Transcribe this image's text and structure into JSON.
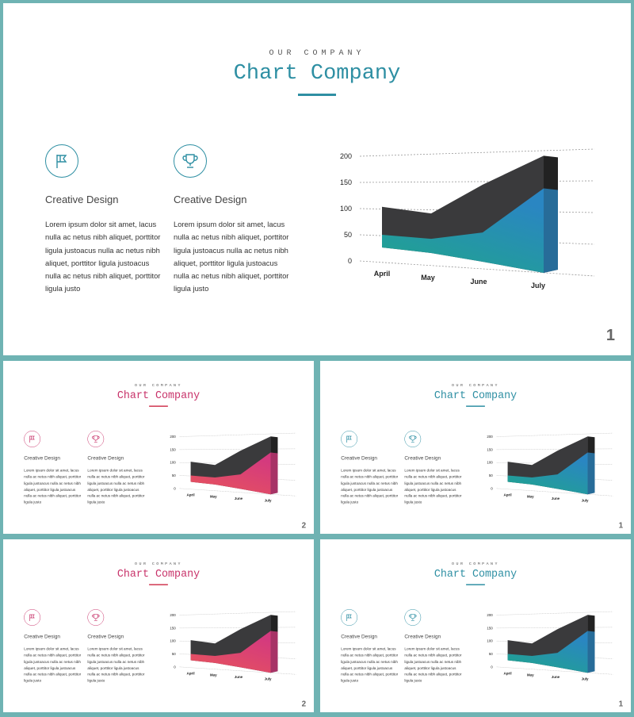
{
  "slides": [
    {
      "number": "1",
      "kicker": "OUR COMPANY",
      "title": "Chart Company",
      "accent": "#2e8fa3",
      "bar": "#2e8fa3",
      "features": [
        {
          "icon": "flag-icon",
          "title": "Creative Design",
          "text": "Lorem ipsum dolor sit amet, lacus nulla ac netus nibh aliquet, porttitor ligula justoacus nulla ac netus nibh aliquet, porttitor ligula justoacus nulla ac netus nibh aliquet, porttitor ligula justo"
        },
        {
          "icon": "trophy-icon",
          "title": "Creative Design",
          "text": "Lorem ipsum dolor sit amet, lacus nulla ac netus nibh aliquet, porttitor ligula justoacus nulla ac netus nibh aliquet, porttitor ligula justoacus nulla ac netus nibh aliquet, porttitor ligula justo"
        }
      ],
      "gradient": [
        "#1fa68a",
        "#2a86c2"
      ]
    },
    {
      "number": "2",
      "kicker": "OUR COMPANY",
      "title": "Chart Company",
      "accent": "#c8336a",
      "bar": "#d0354f",
      "features": [
        {
          "icon": "flag-icon",
          "title": "Creative Design",
          "text": "Lorem ipsum dolor sit amet, lacus nulla ac netus nibh aliquet, porttitor ligula justoacus nulla ac netus nibh aliquet, porttitor ligula justoacus nulla ac netus nibh aliquet, porttitor ligula justo"
        },
        {
          "icon": "trophy-icon",
          "title": "Creative Design",
          "text": "Lorem ipsum dolor sit amet, lacus nulla ac netus nibh aliquet, porttitor ligula justoacus nulla ac netus nibh aliquet, porttitor ligula justoacus nulla ac netus nibh aliquet, porttitor ligula justo"
        }
      ],
      "gradient": [
        "#e8555a",
        "#d43a7e"
      ]
    },
    {
      "number": "1",
      "kicker": "OUR COMPANY",
      "title": "Chart Company",
      "accent": "#2e8fa3",
      "bar": "#2e8fa3",
      "features": [
        {
          "icon": "flag-icon",
          "title": "Creative Design",
          "text": "Lorem ipsum dolor sit amet, lacus nulla ac netus nibh aliquet, porttitor ligula justoacus nulla ac netus nibh aliquet, porttitor ligula justoacus nulla ac netus nibh aliquet, porttitor ligula justo"
        },
        {
          "icon": "trophy-icon",
          "title": "Creative Design",
          "text": "Lorem ipsum dolor sit amet, lacus nulla ac netus nibh aliquet, porttitor ligula justoacus nulla ac netus nibh aliquet, porttitor ligula justoacus nulla ac netus nibh aliquet, porttitor ligula justo"
        }
      ],
      "gradient": [
        "#1fa68a",
        "#2a86c2"
      ]
    },
    {
      "number": "2",
      "kicker": "OUR COMPANY",
      "title": "Chart Company",
      "accent": "#c8336a",
      "bar": "#d0354f",
      "features": [
        {
          "icon": "flag-icon",
          "title": "Creative Design",
          "text": "Lorem ipsum dolor sit amet, lacus nulla ac netus nibh aliquet, porttitor ligula justoacus nulla ac netus nibh aliquet, porttitor ligula justoacus nulla ac netus nibh aliquet, porttitor ligula justo"
        },
        {
          "icon": "trophy-icon",
          "title": "Creative Design",
          "text": "Lorem ipsum dolor sit amet, lacus nulla ac netus nibh aliquet, porttitor ligula justoacus nulla ac netus nibh aliquet, porttitor ligula justoacus nulla ac netus nibh aliquet, porttitor ligula justo"
        }
      ],
      "gradient": [
        "#e8555a",
        "#d43a7e"
      ]
    },
    {
      "number": "1",
      "kicker": "OUR COMPANY",
      "title": "Chart Company",
      "accent": "#2e8fa3",
      "bar": "#2e8fa3",
      "features": [
        {
          "icon": "flag-icon",
          "title": "Creative Design",
          "text": "Lorem ipsum dolor sit amet, lacus nulla ac netus nibh aliquet, porttitor ligula justoacus nulla ac netus nibh aliquet, porttitor ligula justoacus nulla ac netus nibh aliquet, porttitor ligula justo"
        },
        {
          "icon": "trophy-icon",
          "title": "Creative Design",
          "text": "Lorem ipsum dolor sit amet, lacus nulla ac netus nibh aliquet, porttitor ligula justoacus nulla ac netus nibh aliquet, porttitor ligula justoacus nulla ac netus nibh aliquet, porttitor ligula justo"
        }
      ],
      "gradient": [
        "#1fa68a",
        "#2a86c2"
      ]
    }
  ],
  "chart_data": {
    "type": "area",
    "categories": [
      "April",
      "May",
      "June",
      "July"
    ],
    "series": [
      {
        "values": [
          80,
          78,
          145,
          205
        ]
      },
      {
        "values": [
          25,
          28,
          55,
          148
        ]
      }
    ],
    "yticks": [
      "0",
      "50",
      "100",
      "150",
      "200"
    ],
    "ylim": [
      0,
      200
    ],
    "colors": {
      "back": "#3a3a3c",
      "grid": "#999999"
    }
  }
}
